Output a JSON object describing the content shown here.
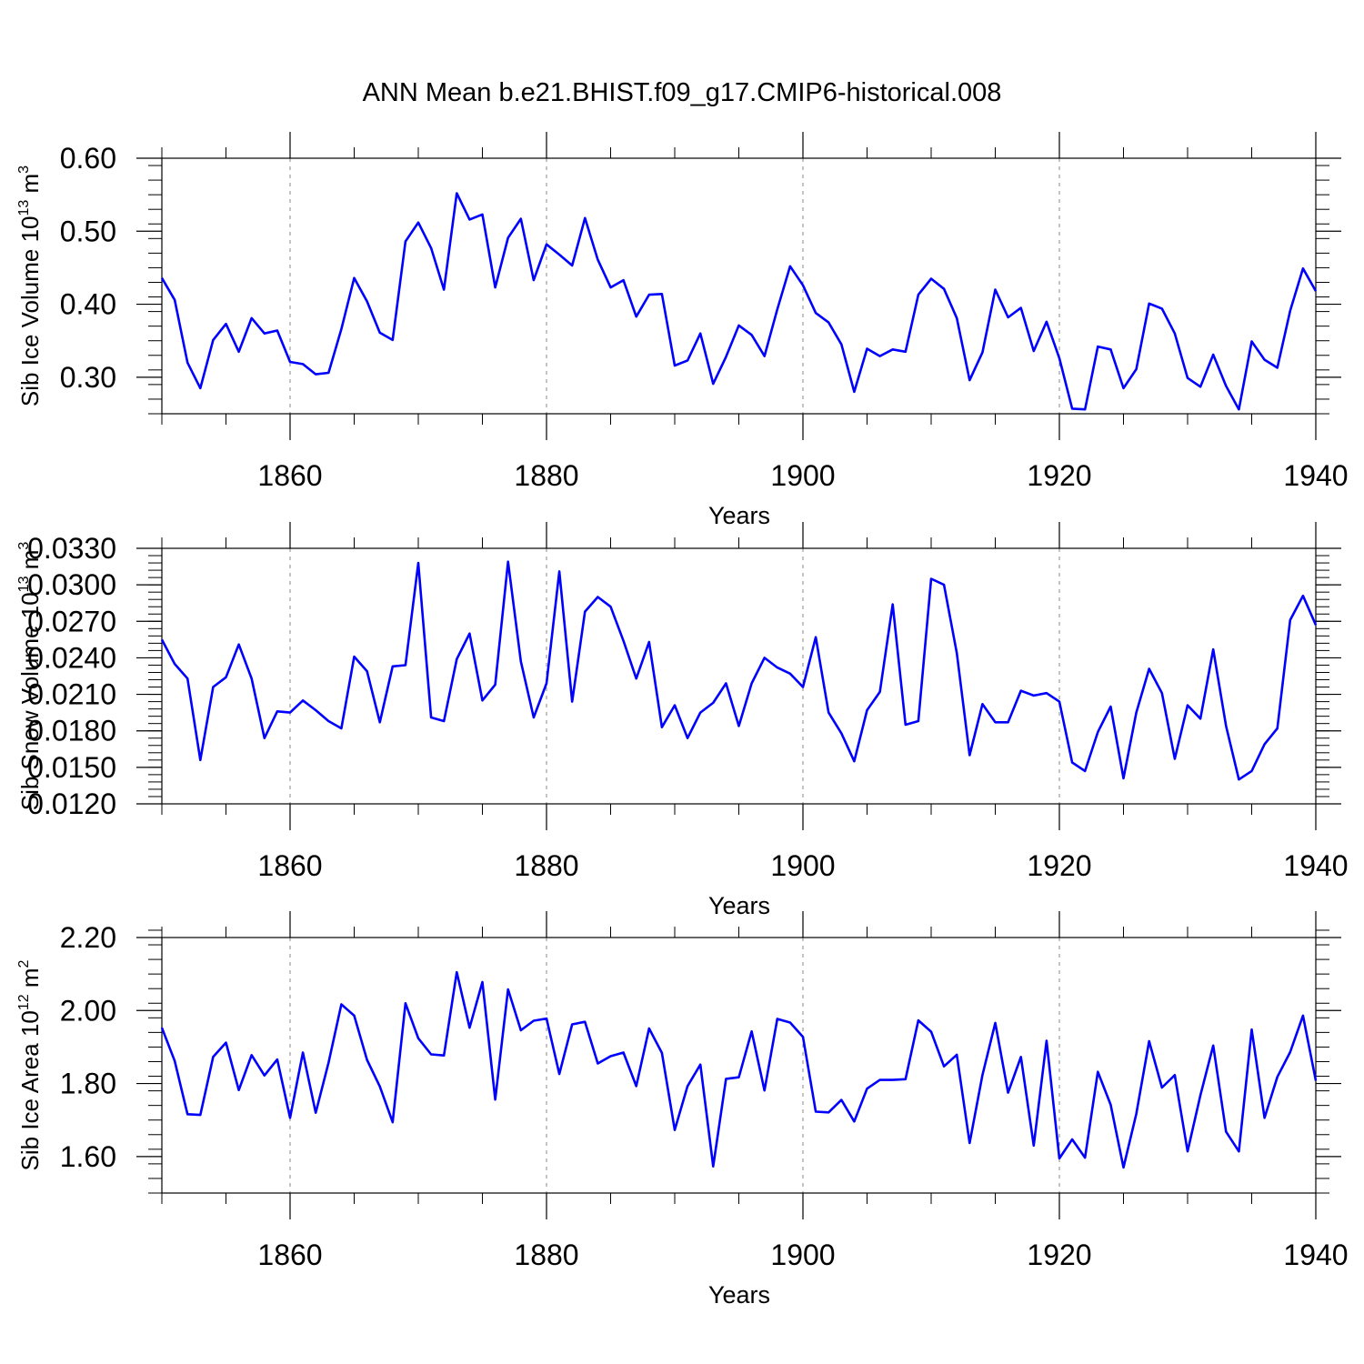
{
  "title": "ANN Mean b.e21.BHIST.f09_g17.CMIP6-historical.008",
  "chart_data": [
    {
      "type": "line",
      "title": "ANN Mean b.e21.BHIST.f09_g17.CMIP6-historical.008",
      "xlabel": "Years",
      "ylabel_main": "Sib Ice Volume 10",
      "ylabel_exp": "13",
      "ylabel_unit": " m",
      "ylabel_unit_exp": "3",
      "xlim": [
        1850,
        1940
      ],
      "ylim": [
        0.25,
        0.6
      ],
      "xticks": [
        1860,
        1880,
        1900,
        1920,
        1940
      ],
      "xtick_labels": [
        "1860",
        "1880",
        "1900",
        "1920",
        "1940"
      ],
      "yticks": [
        0.3,
        0.4,
        0.5,
        0.6
      ],
      "ytick_labels": [
        "0.30",
        "0.40",
        "0.50",
        "0.60"
      ],
      "grid": "dashed vertical lines at major x ticks",
      "line_color": "#0000ff",
      "x_start": 1850,
      "values": [
        0.436,
        0.406,
        0.32,
        0.285,
        0.351,
        0.373,
        0.335,
        0.381,
        0.36,
        0.364,
        0.321,
        0.318,
        0.304,
        0.306,
        0.366,
        0.436,
        0.404,
        0.361,
        0.351,
        0.486,
        0.512,
        0.477,
        0.42,
        0.552,
        0.516,
        0.523,
        0.423,
        0.491,
        0.517,
        0.433,
        0.482,
        0.468,
        0.453,
        0.518,
        0.461,
        0.423,
        0.433,
        0.383,
        0.413,
        0.414,
        0.316,
        0.323,
        0.36,
        0.291,
        0.328,
        0.371,
        0.358,
        0.329,
        0.393,
        0.452,
        0.426,
        0.388,
        0.375,
        0.345,
        0.28,
        0.339,
        0.329,
        0.338,
        0.335,
        0.413,
        0.435,
        0.421,
        0.381,
        0.296,
        0.334,
        0.42,
        0.382,
        0.395,
        0.336,
        0.376,
        0.326,
        0.257,
        0.256,
        0.342,
        0.338,
        0.285,
        0.311,
        0.401,
        0.394,
        0.36,
        0.299,
        0.287,
        0.331,
        0.288,
        0.256,
        0.349,
        0.324,
        0.313,
        0.391,
        0.449,
        0.418
      ]
    },
    {
      "type": "line",
      "xlabel": "Years",
      "ylabel_main": "Sib Snow Volume 10",
      "ylabel_exp": "13",
      "ylabel_unit": " m",
      "ylabel_unit_exp": "3",
      "xlim": [
        1850,
        1940
      ],
      "ylim": [
        0.012,
        0.033
      ],
      "xticks": [
        1860,
        1880,
        1900,
        1920,
        1940
      ],
      "xtick_labels": [
        "1860",
        "1880",
        "1900",
        "1920",
        "1940"
      ],
      "yticks": [
        0.012,
        0.015,
        0.018,
        0.021,
        0.024,
        0.027,
        0.03,
        0.033
      ],
      "ytick_labels": [
        "0.0120",
        "0.0150",
        "0.0180",
        "0.0210",
        "0.0240",
        "0.0270",
        "0.0300",
        "0.0330"
      ],
      "grid": "dashed vertical lines at major x ticks",
      "line_color": "#0000ff",
      "x_start": 1850,
      "values": [
        0.0255,
        0.0235,
        0.0223,
        0.0156,
        0.0216,
        0.0224,
        0.0251,
        0.0223,
        0.0174,
        0.0196,
        0.0195,
        0.0205,
        0.0197,
        0.0188,
        0.0182,
        0.0241,
        0.0229,
        0.0187,
        0.0233,
        0.0234,
        0.0318,
        0.0191,
        0.0188,
        0.0239,
        0.026,
        0.0205,
        0.0218,
        0.0319,
        0.0237,
        0.0191,
        0.0219,
        0.0311,
        0.0204,
        0.0278,
        0.029,
        0.0282,
        0.0254,
        0.0223,
        0.0253,
        0.0183,
        0.0201,
        0.0174,
        0.0195,
        0.0203,
        0.0219,
        0.0184,
        0.0219,
        0.024,
        0.0232,
        0.0227,
        0.0216,
        0.0257,
        0.0195,
        0.0178,
        0.0155,
        0.0197,
        0.0212,
        0.0284,
        0.0185,
        0.0188,
        0.0305,
        0.03,
        0.0244,
        0.016,
        0.0202,
        0.0187,
        0.0187,
        0.0213,
        0.0209,
        0.0211,
        0.0204,
        0.0154,
        0.0147,
        0.0179,
        0.02,
        0.0141,
        0.0195,
        0.0231,
        0.0211,
        0.0157,
        0.0201,
        0.019,
        0.0247,
        0.0184,
        0.014,
        0.0147,
        0.0169,
        0.0182,
        0.0271,
        0.0291,
        0.0267
      ]
    },
    {
      "type": "line",
      "xlabel": "Years",
      "ylabel_main": "Sib Ice Area 10",
      "ylabel_exp": "12",
      "ylabel_unit": " m",
      "ylabel_unit_exp": "2",
      "xlim": [
        1850,
        1940
      ],
      "ylim": [
        1.5,
        2.2
      ],
      "xticks": [
        1860,
        1880,
        1900,
        1920,
        1940
      ],
      "xtick_labels": [
        "1860",
        "1880",
        "1900",
        "1920",
        "1940"
      ],
      "yticks": [
        1.6,
        1.8,
        2.0,
        2.2
      ],
      "ytick_labels": [
        "1.60",
        "1.80",
        "2.00",
        "2.20"
      ],
      "grid": "dashed vertical lines at major x ticks",
      "line_color": "#0000ff",
      "x_start": 1850,
      "values": [
        1.953,
        1.862,
        1.716,
        1.714,
        1.873,
        1.912,
        1.782,
        1.878,
        1.822,
        1.866,
        1.706,
        1.885,
        1.72,
        1.857,
        2.017,
        1.986,
        1.865,
        1.792,
        1.694,
        2.02,
        1.924,
        1.88,
        1.877,
        2.105,
        1.953,
        2.078,
        1.756,
        2.058,
        1.946,
        1.972,
        1.978,
        1.826,
        1.962,
        1.969,
        1.855,
        1.875,
        1.885,
        1.793,
        1.951,
        1.884,
        1.673,
        1.793,
        1.852,
        1.573,
        1.813,
        1.817,
        1.943,
        1.781,
        1.977,
        1.967,
        1.928,
        1.723,
        1.721,
        1.755,
        1.696,
        1.786,
        1.81,
        1.81,
        1.812,
        1.973,
        1.942,
        1.847,
        1.879,
        1.637,
        1.823,
        1.966,
        1.775,
        1.873,
        1.63,
        1.917,
        1.595,
        1.647,
        1.597,
        1.832,
        1.742,
        1.57,
        1.717,
        1.916,
        1.789,
        1.823,
        1.614,
        1.768,
        1.904,
        1.668,
        1.614,
        1.948,
        1.706,
        1.818,
        1.886,
        1.986,
        1.808
      ]
    }
  ]
}
